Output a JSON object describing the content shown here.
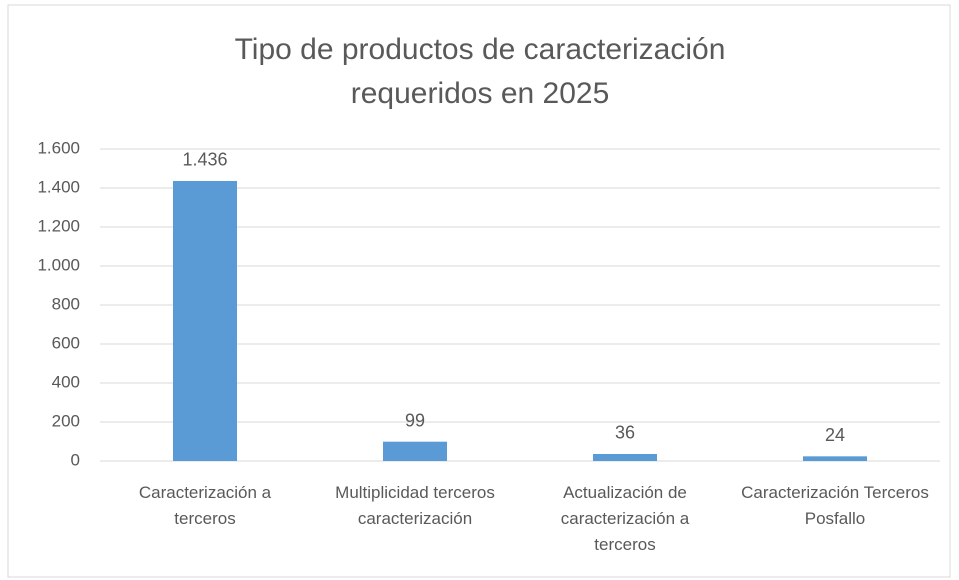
{
  "chart_data": {
    "type": "bar",
    "title": "Tipo de productos de caracterización requeridos en 2025",
    "categories": [
      "Caracterización a terceros",
      "Multiplicidad terceros caracterización",
      "Actualización de caracterización a terceros",
      "Caracterización Terceros Posfallo"
    ],
    "values": [
      1436,
      99,
      36,
      24
    ],
    "value_labels": [
      "1.436",
      "99",
      "36",
      "24"
    ],
    "color": "#5b9bd5",
    "ylim": [
      0,
      1600
    ],
    "yticks": [
      0,
      200,
      400,
      600,
      800,
      {
        "value": 1000,
        "label": "1.000"
      },
      {
        "value": 1200,
        "label": "1.200"
      },
      {
        "value": 1400,
        "label": "1.400"
      },
      {
        "value": 1600,
        "label": "1.600"
      }
    ],
    "grid": true
  }
}
